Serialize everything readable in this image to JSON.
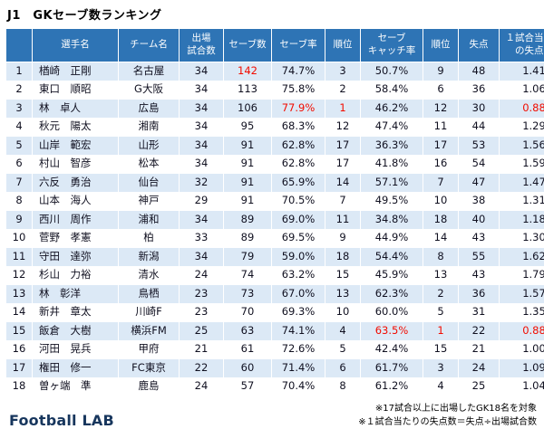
{
  "page": {
    "title": "J1　GKセーブ数ランキング",
    "logo": "Football LAB",
    "footnote1": "※17試合以上に出場したGK18名を対象",
    "footnote2": "※１試合当たりの失点数＝失点÷出場試合数"
  },
  "colors": {
    "header_bg": "#2E74B5",
    "row_alt_bg": "#DCE9F6",
    "highlight_red": "#F20C00",
    "logo_navy": "#17365D"
  },
  "table": {
    "fields": [
      "rank",
      "name",
      "team",
      "games",
      "saves",
      "save_rate",
      "save_rate_rank",
      "catch_rate",
      "catch_rate_rank",
      "conceded",
      "per_game"
    ],
    "headers": {
      "rank": "",
      "name": "選手名",
      "team": "チーム名",
      "games": "出場\n試合数",
      "saves": "セーブ数",
      "save_rate": "セーブ率",
      "save_rate_rank": "順位",
      "catch_rate": "セーブ\nキャッチ率",
      "catch_rate_rank": "順位",
      "conceded": "失点",
      "per_game": "１試合当たり\nの失点数"
    },
    "rows": [
      {
        "rank": "1",
        "name": "楢崎　正剛",
        "team": "名古屋",
        "games": "34",
        "saves": "142",
        "save_rate": "74.7%",
        "save_rate_rank": "3",
        "catch_rate": "50.7%",
        "catch_rate_rank": "9",
        "conceded": "48",
        "per_game": "1.41",
        "red": [
          "saves"
        ]
      },
      {
        "rank": "2",
        "name": "東口　順昭",
        "team": "G大阪",
        "games": "34",
        "saves": "113",
        "save_rate": "75.8%",
        "save_rate_rank": "2",
        "catch_rate": "58.4%",
        "catch_rate_rank": "6",
        "conceded": "36",
        "per_game": "1.06",
        "red": []
      },
      {
        "rank": "3",
        "name": "林　卓人",
        "team": "広島",
        "games": "34",
        "saves": "106",
        "save_rate": "77.9%",
        "save_rate_rank": "1",
        "catch_rate": "46.2%",
        "catch_rate_rank": "12",
        "conceded": "30",
        "per_game": "0.88",
        "red": [
          "save_rate",
          "save_rate_rank",
          "per_game"
        ]
      },
      {
        "rank": "4",
        "name": "秋元　陽太",
        "team": "湘南",
        "games": "34",
        "saves": "95",
        "save_rate": "68.3%",
        "save_rate_rank": "12",
        "catch_rate": "47.4%",
        "catch_rate_rank": "11",
        "conceded": "44",
        "per_game": "1.29",
        "red": []
      },
      {
        "rank": "5",
        "name": "山岸　範宏",
        "team": "山形",
        "games": "34",
        "saves": "91",
        "save_rate": "62.8%",
        "save_rate_rank": "17",
        "catch_rate": "36.3%",
        "catch_rate_rank": "17",
        "conceded": "53",
        "per_game": "1.56",
        "red": []
      },
      {
        "rank": "6",
        "name": "村山　智彦",
        "team": "松本",
        "games": "34",
        "saves": "91",
        "save_rate": "62.8%",
        "save_rate_rank": "17",
        "catch_rate": "41.8%",
        "catch_rate_rank": "16",
        "conceded": "54",
        "per_game": "1.59",
        "red": []
      },
      {
        "rank": "7",
        "name": "六反　勇治",
        "team": "仙台",
        "games": "32",
        "saves": "91",
        "save_rate": "65.9%",
        "save_rate_rank": "14",
        "catch_rate": "57.1%",
        "catch_rate_rank": "7",
        "conceded": "47",
        "per_game": "1.47",
        "red": []
      },
      {
        "rank": "8",
        "name": "山本　海人",
        "team": "神戸",
        "games": "29",
        "saves": "91",
        "save_rate": "70.5%",
        "save_rate_rank": "7",
        "catch_rate": "49.5%",
        "catch_rate_rank": "10",
        "conceded": "38",
        "per_game": "1.31",
        "red": []
      },
      {
        "rank": "9",
        "name": "西川　周作",
        "team": "浦和",
        "games": "34",
        "saves": "89",
        "save_rate": "69.0%",
        "save_rate_rank": "11",
        "catch_rate": "34.8%",
        "catch_rate_rank": "18",
        "conceded": "40",
        "per_game": "1.18",
        "red": []
      },
      {
        "rank": "10",
        "name": "菅野　孝憲",
        "team": "柏",
        "games": "33",
        "saves": "89",
        "save_rate": "69.5%",
        "save_rate_rank": "9",
        "catch_rate": "44.9%",
        "catch_rate_rank": "14",
        "conceded": "43",
        "per_game": "1.30",
        "red": []
      },
      {
        "rank": "11",
        "name": "守田　達弥",
        "team": "新潟",
        "games": "34",
        "saves": "79",
        "save_rate": "59.0%",
        "save_rate_rank": "18",
        "catch_rate": "54.4%",
        "catch_rate_rank": "8",
        "conceded": "55",
        "per_game": "1.62",
        "red": []
      },
      {
        "rank": "12",
        "name": "杉山　力裕",
        "team": "清水",
        "games": "24",
        "saves": "74",
        "save_rate": "63.2%",
        "save_rate_rank": "15",
        "catch_rate": "45.9%",
        "catch_rate_rank": "13",
        "conceded": "43",
        "per_game": "1.79",
        "red": []
      },
      {
        "rank": "13",
        "name": "林　彰洋",
        "team": "鳥栖",
        "games": "23",
        "saves": "73",
        "save_rate": "67.0%",
        "save_rate_rank": "13",
        "catch_rate": "62.3%",
        "catch_rate_rank": "2",
        "conceded": "36",
        "per_game": "1.57",
        "red": []
      },
      {
        "rank": "14",
        "name": "新井　章太",
        "team": "川崎F",
        "games": "23",
        "saves": "70",
        "save_rate": "69.3%",
        "save_rate_rank": "10",
        "catch_rate": "60.0%",
        "catch_rate_rank": "5",
        "conceded": "31",
        "per_game": "1.35",
        "red": []
      },
      {
        "rank": "15",
        "name": "飯倉　大樹",
        "team": "横浜FM",
        "games": "25",
        "saves": "63",
        "save_rate": "74.1%",
        "save_rate_rank": "4",
        "catch_rate": "63.5%",
        "catch_rate_rank": "1",
        "conceded": "22",
        "per_game": "0.88",
        "red": [
          "catch_rate",
          "catch_rate_rank",
          "per_game"
        ]
      },
      {
        "rank": "16",
        "name": "河田　晃兵",
        "team": "甲府",
        "games": "21",
        "saves": "61",
        "save_rate": "72.6%",
        "save_rate_rank": "5",
        "catch_rate": "42.4%",
        "catch_rate_rank": "15",
        "conceded": "21",
        "per_game": "1.00",
        "red": []
      },
      {
        "rank": "17",
        "name": "権田　修一",
        "team": "FC東京",
        "games": "22",
        "saves": "60",
        "save_rate": "71.4%",
        "save_rate_rank": "6",
        "catch_rate": "61.7%",
        "catch_rate_rank": "3",
        "conceded": "24",
        "per_game": "1.09",
        "red": []
      },
      {
        "rank": "18",
        "name": "曽ヶ端　準",
        "team": "鹿島",
        "games": "24",
        "saves": "57",
        "save_rate": "70.4%",
        "save_rate_rank": "8",
        "catch_rate": "61.2%",
        "catch_rate_rank": "4",
        "conceded": "25",
        "per_game": "1.04",
        "red": []
      }
    ]
  }
}
